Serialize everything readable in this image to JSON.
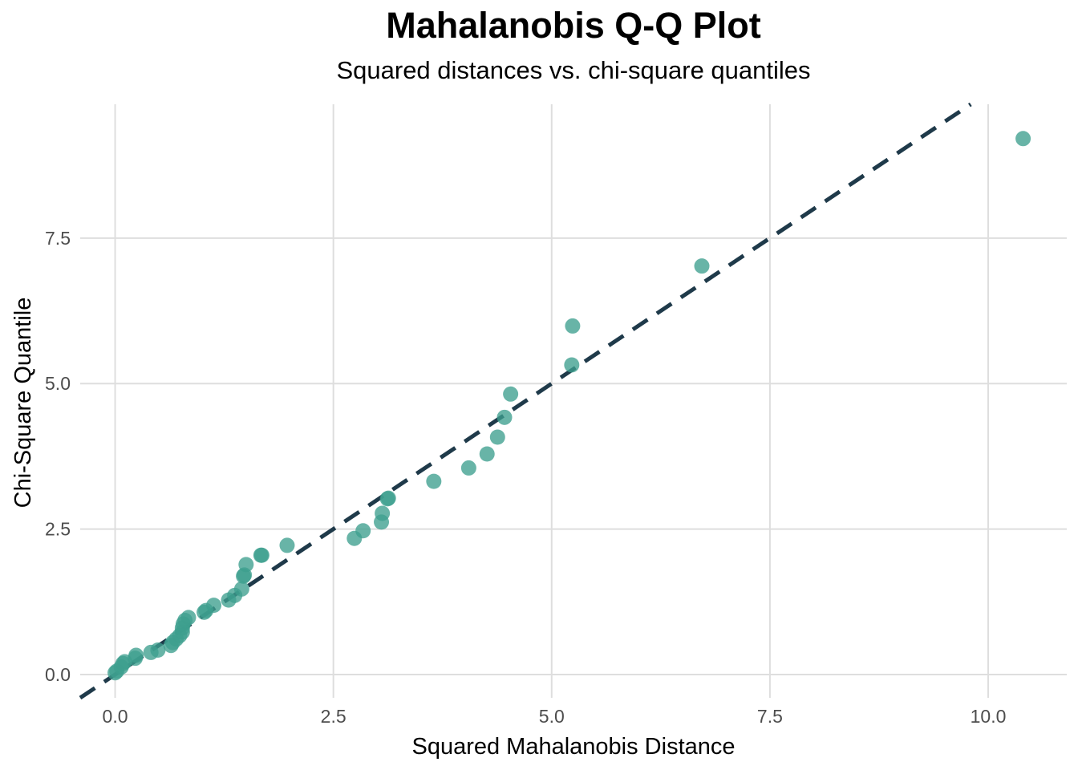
{
  "chart_data": {
    "type": "scatter",
    "title": "Mahalanobis Q-Q Plot",
    "subtitle": "Squared distances vs. chi-square quantiles",
    "xlabel": "Squared Mahalanobis Distance",
    "ylabel": "Chi-Square Quantile",
    "xlim": [
      -0.4,
      10.9
    ],
    "ylim": [
      -0.4,
      9.8
    ],
    "x_ticks": [
      0,
      2.5,
      5,
      7.5,
      10
    ],
    "x_tick_labels": [
      "0.0",
      "2.5",
      "5.0",
      "7.5",
      "10.0"
    ],
    "y_ticks": [
      0,
      2.5,
      5,
      7.5
    ],
    "y_tick_labels": [
      "0.0",
      "2.5",
      "5.0",
      "7.5"
    ],
    "grid": true,
    "reference_line": {
      "slope": 1,
      "intercept": 0,
      "style": "dashed",
      "color": "#1f3a4a"
    },
    "point_color": "#3d9f8e",
    "points": [
      {
        "x": 0.0,
        "y": 0.03
      },
      {
        "x": 0.02,
        "y": 0.06
      },
      {
        "x": 0.07,
        "y": 0.13
      },
      {
        "x": 0.09,
        "y": 0.19
      },
      {
        "x": 0.11,
        "y": 0.22
      },
      {
        "x": 0.23,
        "y": 0.28
      },
      {
        "x": 0.24,
        "y": 0.33
      },
      {
        "x": 0.41,
        "y": 0.38
      },
      {
        "x": 0.49,
        "y": 0.42
      },
      {
        "x": 0.64,
        "y": 0.5
      },
      {
        "x": 0.66,
        "y": 0.55
      },
      {
        "x": 0.7,
        "y": 0.61
      },
      {
        "x": 0.74,
        "y": 0.67
      },
      {
        "x": 0.77,
        "y": 0.73
      },
      {
        "x": 0.77,
        "y": 0.8
      },
      {
        "x": 0.78,
        "y": 0.87
      },
      {
        "x": 0.8,
        "y": 0.93
      },
      {
        "x": 0.84,
        "y": 0.98
      },
      {
        "x": 1.02,
        "y": 1.07
      },
      {
        "x": 1.04,
        "y": 1.1
      },
      {
        "x": 1.13,
        "y": 1.19
      },
      {
        "x": 1.3,
        "y": 1.28
      },
      {
        "x": 1.37,
        "y": 1.36
      },
      {
        "x": 1.45,
        "y": 1.47
      },
      {
        "x": 1.47,
        "y": 1.69
      },
      {
        "x": 1.48,
        "y": 1.71
      },
      {
        "x": 1.5,
        "y": 1.89
      },
      {
        "x": 1.67,
        "y": 2.05
      },
      {
        "x": 1.68,
        "y": 2.05
      },
      {
        "x": 1.97,
        "y": 2.22
      },
      {
        "x": 2.74,
        "y": 2.34
      },
      {
        "x": 2.84,
        "y": 2.47
      },
      {
        "x": 3.05,
        "y": 2.62
      },
      {
        "x": 3.06,
        "y": 2.77
      },
      {
        "x": 3.12,
        "y": 3.02
      },
      {
        "x": 3.13,
        "y": 3.03
      },
      {
        "x": 3.65,
        "y": 3.32
      },
      {
        "x": 4.05,
        "y": 3.55
      },
      {
        "x": 4.26,
        "y": 3.79
      },
      {
        "x": 4.38,
        "y": 4.08
      },
      {
        "x": 4.46,
        "y": 4.42
      },
      {
        "x": 4.53,
        "y": 4.82
      },
      {
        "x": 5.23,
        "y": 5.32
      },
      {
        "x": 5.24,
        "y": 5.99
      },
      {
        "x": 6.72,
        "y": 7.02
      },
      {
        "x": 10.4,
        "y": 9.21
      }
    ]
  }
}
